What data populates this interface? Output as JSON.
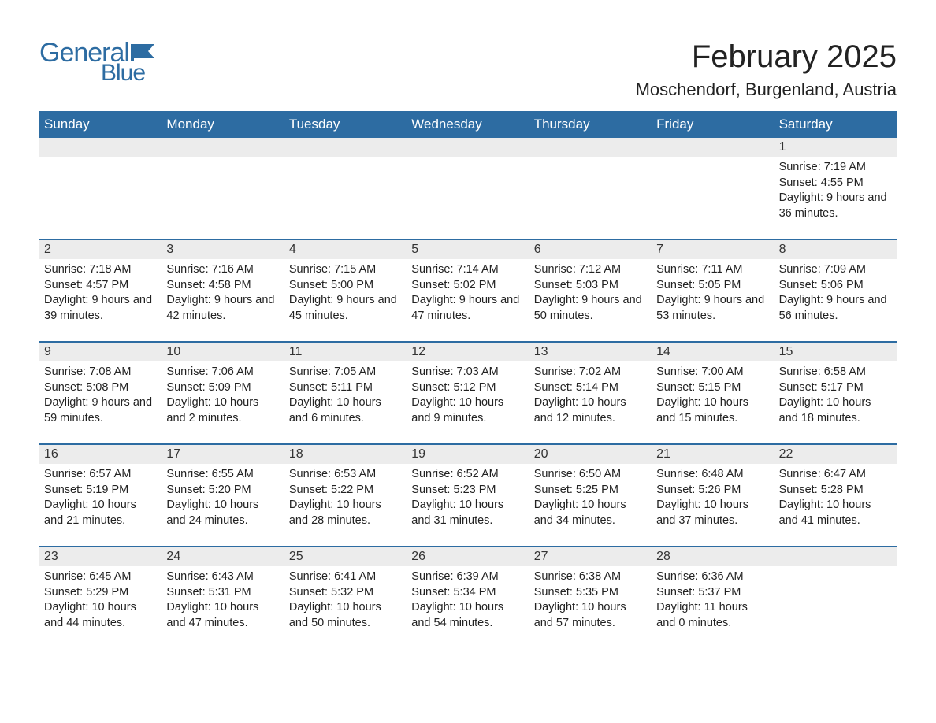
{
  "logo": {
    "text1": "General",
    "text2": "Blue"
  },
  "title": "February 2025",
  "location": "Moschendorf, Burgenland, Austria",
  "colors": {
    "header_bg": "#2d6ca2",
    "header_text": "#ffffff",
    "row_stripe": "#ececec",
    "border": "#2d6ca2",
    "text": "#222222",
    "background": "#ffffff"
  },
  "day_headers": [
    "Sunday",
    "Monday",
    "Tuesday",
    "Wednesday",
    "Thursday",
    "Friday",
    "Saturday"
  ],
  "weeks": [
    [
      null,
      null,
      null,
      null,
      null,
      null,
      {
        "n": "1",
        "sunrise": "7:19 AM",
        "sunset": "4:55 PM",
        "daylight": "9 hours and 36 minutes."
      }
    ],
    [
      {
        "n": "2",
        "sunrise": "7:18 AM",
        "sunset": "4:57 PM",
        "daylight": "9 hours and 39 minutes."
      },
      {
        "n": "3",
        "sunrise": "7:16 AM",
        "sunset": "4:58 PM",
        "daylight": "9 hours and 42 minutes."
      },
      {
        "n": "4",
        "sunrise": "7:15 AM",
        "sunset": "5:00 PM",
        "daylight": "9 hours and 45 minutes."
      },
      {
        "n": "5",
        "sunrise": "7:14 AM",
        "sunset": "5:02 PM",
        "daylight": "9 hours and 47 minutes."
      },
      {
        "n": "6",
        "sunrise": "7:12 AM",
        "sunset": "5:03 PM",
        "daylight": "9 hours and 50 minutes."
      },
      {
        "n": "7",
        "sunrise": "7:11 AM",
        "sunset": "5:05 PM",
        "daylight": "9 hours and 53 minutes."
      },
      {
        "n": "8",
        "sunrise": "7:09 AM",
        "sunset": "5:06 PM",
        "daylight": "9 hours and 56 minutes."
      }
    ],
    [
      {
        "n": "9",
        "sunrise": "7:08 AM",
        "sunset": "5:08 PM",
        "daylight": "9 hours and 59 minutes."
      },
      {
        "n": "10",
        "sunrise": "7:06 AM",
        "sunset": "5:09 PM",
        "daylight": "10 hours and 2 minutes."
      },
      {
        "n": "11",
        "sunrise": "7:05 AM",
        "sunset": "5:11 PM",
        "daylight": "10 hours and 6 minutes."
      },
      {
        "n": "12",
        "sunrise": "7:03 AM",
        "sunset": "5:12 PM",
        "daylight": "10 hours and 9 minutes."
      },
      {
        "n": "13",
        "sunrise": "7:02 AM",
        "sunset": "5:14 PM",
        "daylight": "10 hours and 12 minutes."
      },
      {
        "n": "14",
        "sunrise": "7:00 AM",
        "sunset": "5:15 PM",
        "daylight": "10 hours and 15 minutes."
      },
      {
        "n": "15",
        "sunrise": "6:58 AM",
        "sunset": "5:17 PM",
        "daylight": "10 hours and 18 minutes."
      }
    ],
    [
      {
        "n": "16",
        "sunrise": "6:57 AM",
        "sunset": "5:19 PM",
        "daylight": "10 hours and 21 minutes."
      },
      {
        "n": "17",
        "sunrise": "6:55 AM",
        "sunset": "5:20 PM",
        "daylight": "10 hours and 24 minutes."
      },
      {
        "n": "18",
        "sunrise": "6:53 AM",
        "sunset": "5:22 PM",
        "daylight": "10 hours and 28 minutes."
      },
      {
        "n": "19",
        "sunrise": "6:52 AM",
        "sunset": "5:23 PM",
        "daylight": "10 hours and 31 minutes."
      },
      {
        "n": "20",
        "sunrise": "6:50 AM",
        "sunset": "5:25 PM",
        "daylight": "10 hours and 34 minutes."
      },
      {
        "n": "21",
        "sunrise": "6:48 AM",
        "sunset": "5:26 PM",
        "daylight": "10 hours and 37 minutes."
      },
      {
        "n": "22",
        "sunrise": "6:47 AM",
        "sunset": "5:28 PM",
        "daylight": "10 hours and 41 minutes."
      }
    ],
    [
      {
        "n": "23",
        "sunrise": "6:45 AM",
        "sunset": "5:29 PM",
        "daylight": "10 hours and 44 minutes."
      },
      {
        "n": "24",
        "sunrise": "6:43 AM",
        "sunset": "5:31 PM",
        "daylight": "10 hours and 47 minutes."
      },
      {
        "n": "25",
        "sunrise": "6:41 AM",
        "sunset": "5:32 PM",
        "daylight": "10 hours and 50 minutes."
      },
      {
        "n": "26",
        "sunrise": "6:39 AM",
        "sunset": "5:34 PM",
        "daylight": "10 hours and 54 minutes."
      },
      {
        "n": "27",
        "sunrise": "6:38 AM",
        "sunset": "5:35 PM",
        "daylight": "10 hours and 57 minutes."
      },
      {
        "n": "28",
        "sunrise": "6:36 AM",
        "sunset": "5:37 PM",
        "daylight": "11 hours and 0 minutes."
      },
      null
    ]
  ],
  "labels": {
    "sunrise": "Sunrise:",
    "sunset": "Sunset:",
    "daylight": "Daylight:"
  }
}
